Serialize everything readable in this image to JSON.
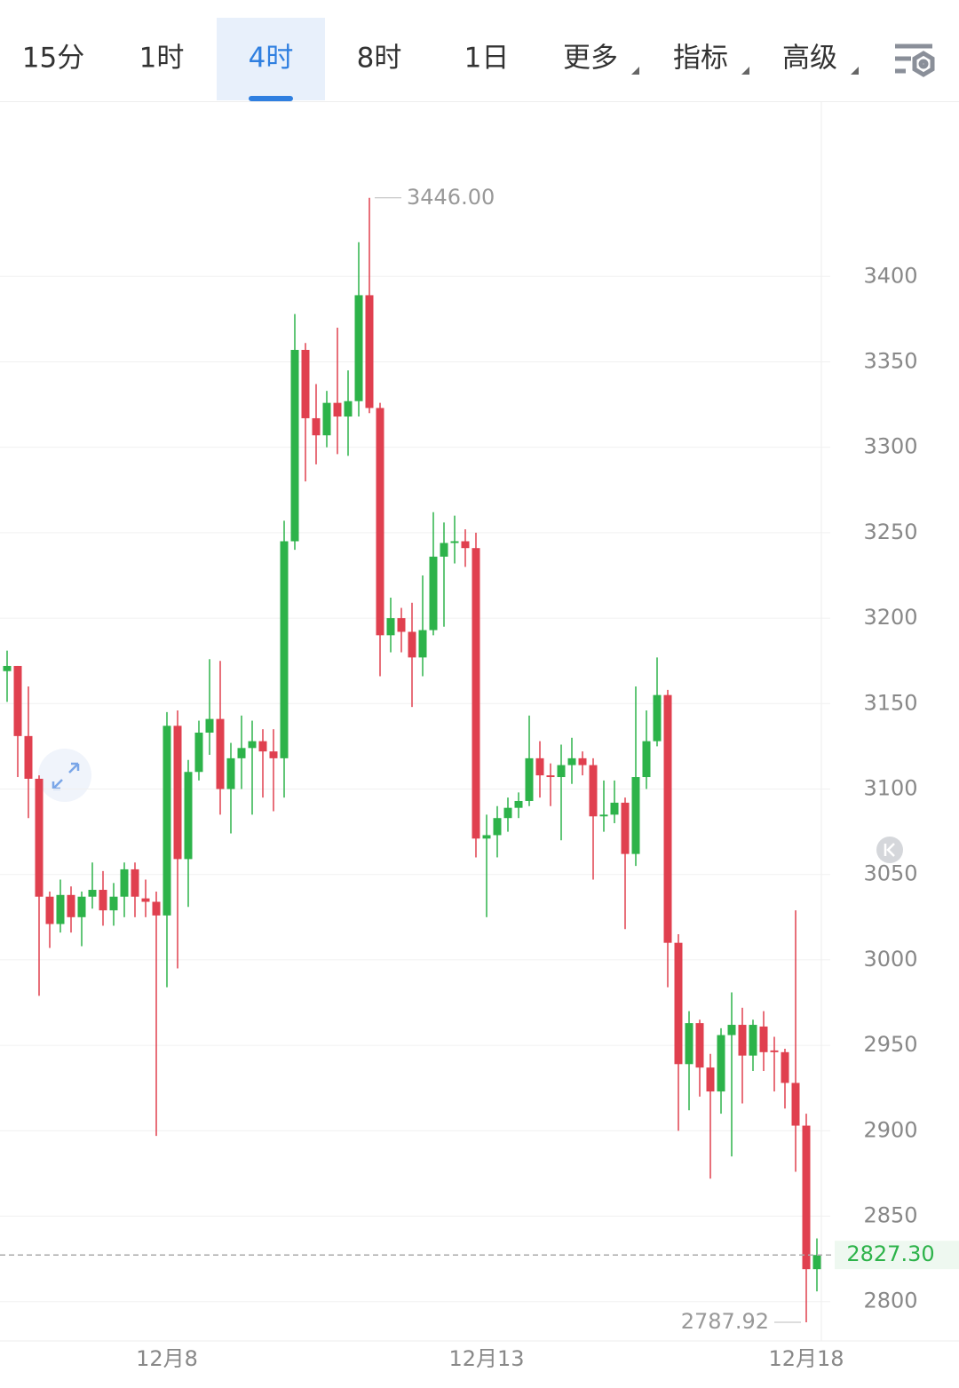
{
  "toolbar": {
    "tabs": [
      "15分",
      "1时",
      "4时",
      "8时",
      "1日"
    ],
    "active": 2,
    "menus": [
      "更多",
      "指标",
      "高级"
    ]
  },
  "chart_data": {
    "type": "candlestick",
    "categories": [
      null,
      null,
      null,
      null,
      null,
      null,
      null,
      null,
      null,
      null,
      null,
      null,
      null,
      null,
      null,
      "12月8",
      null,
      null,
      null,
      null,
      null,
      null,
      null,
      null,
      null,
      null,
      null,
      null,
      null,
      null,
      null,
      null,
      null,
      null,
      null,
      null,
      null,
      null,
      null,
      null,
      null,
      null,
      null,
      null,
      null,
      "12月13",
      null,
      null,
      null,
      null,
      null,
      null,
      null,
      null,
      null,
      null,
      null,
      null,
      null,
      null,
      null,
      null,
      null,
      null,
      null,
      null,
      null,
      null,
      null,
      null,
      null,
      null,
      null,
      null,
      null,
      "12月18",
      null
    ],
    "open": [
      3169,
      3172,
      3131,
      3106,
      3037,
      3021,
      3038,
      3025,
      3037,
      3041,
      3029,
      3037,
      3053,
      3036,
      3034,
      3026,
      3137,
      3059,
      3110,
      3133,
      3141,
      3100,
      3118,
      3124,
      3128,
      3122,
      3118,
      3245,
      3357,
      3317,
      3307,
      3326,
      3318,
      3327,
      3389,
      3323,
      3190,
      3200,
      3192,
      3177,
      3193,
      3236,
      3244,
      3245,
      3241,
      3071,
      3073,
      3083,
      3089,
      3093,
      3118,
      3108,
      3107,
      3114,
      3118,
      3114,
      3084,
      3085,
      3092,
      3062,
      3107,
      3128,
      3155,
      3010,
      2939,
      2963,
      2937,
      2923,
      2956,
      2962,
      2944,
      2961,
      2947,
      2946,
      2928,
      2903,
      2819
    ],
    "high": [
      3181,
      3172,
      3160,
      3108,
      3040,
      3047,
      3043,
      3040,
      3057,
      3052,
      3045,
      3057,
      3057,
      3047,
      3040,
      3145,
      3146,
      3117,
      3140,
      3176,
      3175,
      3127,
      3143,
      3140,
      3135,
      3135,
      3257,
      3378,
      3361,
      3337,
      3333,
      3370,
      3345,
      3420,
      3446,
      3326,
      3212,
      3206,
      3209,
      3225,
      3262,
      3256,
      3260,
      3252,
      3250,
      3085,
      3090,
      3095,
      3098,
      3143,
      3128,
      3115,
      3126,
      3130,
      3122,
      3118,
      3105,
      3105,
      3095,
      3160,
      3146,
      3177,
      3158,
      3015,
      2970,
      2965,
      2945,
      2960,
      2981,
      2972,
      2965,
      2970,
      2955,
      2948,
      3029,
      2910,
      2837
    ],
    "low": [
      3151,
      3107,
      3083,
      2979,
      3007,
      3016,
      3016,
      3008,
      3030,
      3020,
      3020,
      3025,
      3025,
      3025,
      2897,
      2984,
      2995,
      3031,
      3105,
      3120,
      3085,
      3074,
      3100,
      3085,
      3095,
      3087,
      3095,
      3240,
      3280,
      3290,
      3300,
      3296,
      3295,
      3318,
      3320,
      3166,
      3180,
      3180,
      3148,
      3166,
      3190,
      3195,
      3232,
      3230,
      3060,
      3025,
      3060,
      3075,
      3083,
      3090,
      3095,
      3090,
      3070,
      3103,
      3108,
      3047,
      3075,
      3080,
      3018,
      3055,
      3100,
      3125,
      2984,
      2900,
      2912,
      2920,
      2872,
      2910,
      2885,
      2916,
      2935,
      2935,
      2923,
      2913,
      2876,
      2787.92,
      2806
    ],
    "close": [
      3172,
      3131,
      3106,
      3037,
      3021,
      3038,
      3025,
      3037,
      3041,
      3029,
      3037,
      3053,
      3037,
      3034,
      3026,
      3137,
      3059,
      3110,
      3133,
      3141,
      3100,
      3118,
      3124,
      3128,
      3122,
      3118,
      3245,
      3357,
      3317,
      3307,
      3326,
      3318,
      3327,
      3389,
      3323,
      3190,
      3200,
      3192,
      3177,
      3193,
      3236,
      3244,
      3245,
      3241,
      3071,
      3073,
      3083,
      3089,
      3093,
      3118,
      3108,
      3107,
      3114,
      3118,
      3114,
      3084,
      3085,
      3092,
      3062,
      3107,
      3128,
      3155,
      3010,
      2939,
      2963,
      2937,
      2923,
      2956,
      2962,
      2944,
      2962,
      2946,
      2946,
      2928,
      2903,
      2819,
      2827.3
    ],
    "up_color": "#2db34a",
    "down_color": "#e0404f",
    "ylim": [
      2777,
      3502
    ],
    "yticks": [
      2800,
      2850,
      2900,
      2950,
      3000,
      3050,
      3100,
      3150,
      3200,
      3250,
      3300,
      3350,
      3400
    ],
    "grid": true,
    "last_price": {
      "value": 2827.3,
      "label": "2827.30"
    },
    "annotations": [
      {
        "value": 3446,
        "label": "3446.00"
      },
      {
        "value": 2787.92,
        "label": "2787.92"
      }
    ]
  }
}
